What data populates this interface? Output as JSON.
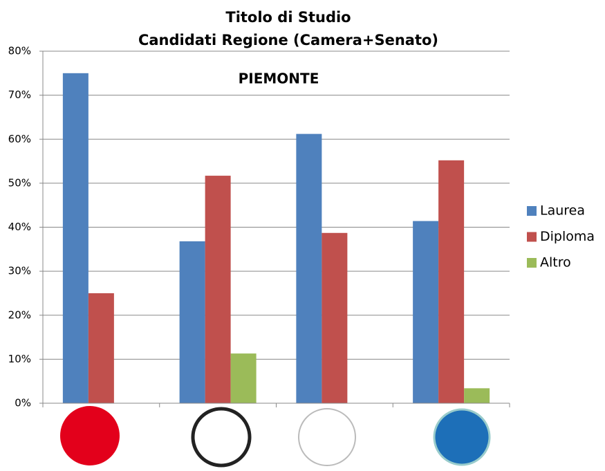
{
  "chart_data": {
    "type": "bar",
    "title": "Titolo di Studio",
    "subtitle": "Candidati Regione (Camera+Senato)",
    "annotation": "PIEMONTE",
    "categories": [
      null,
      null,
      null,
      null
    ],
    "series": [
      {
        "name": "Laurea",
        "color": "#4f81bd",
        "values": [
          75,
          36.8,
          61.2,
          41.4
        ]
      },
      {
        "name": "Diploma",
        "color": "#c0504d",
        "values": [
          25,
          51.7,
          38.7,
          55.2
        ]
      },
      {
        "name": "Altro",
        "color": "#9bbb59",
        "values": [
          0,
          11.3,
          0,
          3.4
        ]
      }
    ],
    "ylim": [
      0,
      80
    ],
    "yticks": [
      {
        "value": 0,
        "label": "0%"
      },
      {
        "value": 10,
        "label": "10%"
      },
      {
        "value": 20,
        "label": "20%"
      },
      {
        "value": 30,
        "label": "30%"
      },
      {
        "value": 40,
        "label": "40%"
      },
      {
        "value": 50,
        "label": "50%"
      },
      {
        "value": 60,
        "label": "60%"
      },
      {
        "value": 70,
        "label": "70%"
      },
      {
        "value": 80,
        "label": "80%"
      }
    ],
    "grid": true,
    "legend": "right"
  }
}
